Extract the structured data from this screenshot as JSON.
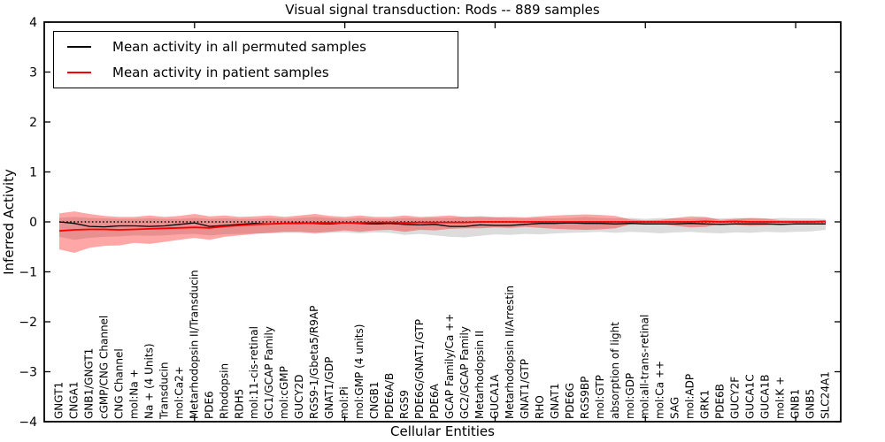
{
  "chart_data": {
    "type": "line",
    "title": "Visual signal transduction: Rods -- 889 samples",
    "xlabel": "Cellular Entities",
    "ylabel": "Inferred Activity",
    "xlim": [
      0,
      53
    ],
    "ylim": [
      -4,
      4
    ],
    "grid": false,
    "legend_position": "upper-left",
    "x_major_ticks": [
      10,
      20,
      30,
      40,
      50
    ],
    "y_ticks": [
      {
        "value": 4,
        "label": "4"
      },
      {
        "value": 3,
        "label": "3"
      },
      {
        "value": 2,
        "label": "2"
      },
      {
        "value": 1,
        "label": "1"
      },
      {
        "value": 0,
        "label": "0"
      },
      {
        "value": -1,
        "label": "−1"
      },
      {
        "value": -2,
        "label": "−2"
      },
      {
        "value": -3,
        "label": "−3"
      },
      {
        "value": -4,
        "label": "−4"
      }
    ],
    "categories": [
      "GNGT1",
      "CNGA1",
      "GNB1/GNGT1",
      "cGMP/CNG Channel",
      "CNG Channel",
      "mol:Na +",
      "Na + (4 Units)",
      "Transducin",
      "mol:Ca2+",
      "Metarhodopsin II/Transducin",
      "PDE6",
      "Rhodopsin",
      "RDH5",
      "mol:11-cis-retinal",
      "GC1/GCAP Family",
      "mol:cGMP",
      "GUCY2D",
      "RGS9-1/Gbeta5/R9AP",
      "GNAT1/GDP",
      "mol:Pi",
      "mol:GMP (4 units)",
      "CNGB1",
      "PDE6A/B",
      "RGS9",
      "PDE6G/GNAT1/GTP",
      "PDE6A",
      "GCAP Family/Ca ++",
      "GC2/GCAP Family",
      "Metarhodopsin II",
      "GUCA1A",
      "Metarhodopsin II/Arrestin",
      "GNAT1/GTP",
      "RHO",
      "GNAT1",
      "PDE6G",
      "RGS9BP",
      "mol:GTP",
      "absorption of light",
      "mol:GDP",
      "mol:all-trans-retinal",
      "mol:Ca ++",
      "SAG",
      "mol:ADP",
      "GRK1",
      "PDE6B",
      "GUCY2F",
      "GUCA1C",
      "GUCA1B",
      "mol:K +",
      "GNB1",
      "GNB5",
      "SLC24A1"
    ],
    "zero_line": {
      "y": 0,
      "style": "dotted",
      "color": "#000000"
    },
    "series": [
      {
        "id": "mean-permuted",
        "name": "Mean activity in all permuted samples",
        "color": "#000000",
        "width": 1.3,
        "values": [
          0.0,
          -0.03,
          -0.09,
          -0.1,
          -0.08,
          -0.08,
          -0.09,
          -0.08,
          -0.05,
          -0.02,
          -0.09,
          -0.07,
          -0.05,
          -0.03,
          -0.04,
          -0.03,
          -0.02,
          -0.03,
          -0.04,
          -0.02,
          -0.03,
          -0.04,
          -0.03,
          -0.05,
          -0.06,
          -0.05,
          -0.09,
          -0.09,
          -0.06,
          -0.07,
          -0.07,
          -0.05,
          -0.03,
          -0.03,
          -0.02,
          -0.03,
          -0.03,
          -0.04,
          -0.03,
          -0.04,
          -0.04,
          -0.04,
          -0.03,
          -0.04,
          -0.05,
          -0.04,
          -0.04,
          -0.04,
          -0.05,
          -0.04,
          -0.04,
          -0.04
        ]
      },
      {
        "id": "mean-patient",
        "name": "Mean activity in patient samples",
        "color": "#ff0000",
        "width": 1.8,
        "values": [
          -0.18,
          -0.16,
          -0.15,
          -0.15,
          -0.16,
          -0.15,
          -0.14,
          -0.13,
          -0.12,
          -0.11,
          -0.12,
          -0.09,
          -0.07,
          -0.05,
          -0.04,
          -0.03,
          -0.03,
          -0.02,
          -0.02,
          -0.02,
          -0.02,
          -0.01,
          -0.01,
          -0.02,
          -0.01,
          -0.01,
          -0.01,
          -0.01,
          0.0,
          0.0,
          0.0,
          0.0,
          0.0,
          0.0,
          0.0,
          0.0,
          0.0,
          0.0,
          0.0,
          0.0,
          0.0,
          0.0,
          0.0,
          0.01,
          0.0,
          0.01,
          0.0,
          0.0,
          0.0,
          0.0,
          0.0,
          0.01
        ]
      }
    ],
    "bands": [
      {
        "id": "gray-band",
        "name": "permuted samples activity range",
        "color": "#808080",
        "opacity": 0.28,
        "upper": [
          0.08,
          0.1,
          0.08,
          0.07,
          0.06,
          0.06,
          0.07,
          0.06,
          0.06,
          0.08,
          0.06,
          0.07,
          0.06,
          0.06,
          0.08,
          0.06,
          0.08,
          0.1,
          0.08,
          0.06,
          0.08,
          0.06,
          0.06,
          0.08,
          0.07,
          0.08,
          0.08,
          0.1,
          0.12,
          0.1,
          0.08,
          0.07,
          0.08,
          0.07,
          0.08,
          0.1,
          0.08,
          0.07,
          0.08,
          0.06,
          0.08,
          0.07,
          0.06,
          0.08,
          0.07,
          0.08,
          0.07,
          0.06,
          0.08,
          0.07,
          0.07,
          0.06
        ],
        "lower": [
          -0.3,
          -0.36,
          -0.32,
          -0.3,
          -0.29,
          -0.27,
          -0.28,
          -0.27,
          -0.25,
          -0.24,
          -0.27,
          -0.25,
          -0.24,
          -0.23,
          -0.23,
          -0.22,
          -0.22,
          -0.24,
          -0.22,
          -0.21,
          -0.23,
          -0.21,
          -0.22,
          -0.26,
          -0.24,
          -0.27,
          -0.3,
          -0.31,
          -0.28,
          -0.25,
          -0.26,
          -0.24,
          -0.25,
          -0.23,
          -0.22,
          -0.21,
          -0.2,
          -0.22,
          -0.2,
          -0.21,
          -0.23,
          -0.21,
          -0.2,
          -0.22,
          -0.23,
          -0.21,
          -0.22,
          -0.2,
          -0.21,
          -0.2,
          -0.19,
          -0.16
        ]
      },
      {
        "id": "red-band",
        "name": "patient samples activity range",
        "color": "#ff0000",
        "opacity": 0.35,
        "upper": [
          0.17,
          0.21,
          0.16,
          0.12,
          0.1,
          0.1,
          0.13,
          0.1,
          0.12,
          0.16,
          0.11,
          0.13,
          0.1,
          0.11,
          0.13,
          0.1,
          0.13,
          0.16,
          0.12,
          0.1,
          0.13,
          0.1,
          0.1,
          0.13,
          0.1,
          0.11,
          0.13,
          0.1,
          0.1,
          0.09,
          0.1,
          0.09,
          0.11,
          0.13,
          0.14,
          0.15,
          0.14,
          0.12,
          0.05,
          0.03,
          0.04,
          0.08,
          0.11,
          0.1,
          0.04,
          0.06,
          0.08,
          0.07,
          0.03,
          0.03,
          0.03,
          0.03
        ],
        "lower": [
          -0.55,
          -0.62,
          -0.52,
          -0.48,
          -0.47,
          -0.42,
          -0.44,
          -0.4,
          -0.36,
          -0.32,
          -0.36,
          -0.3,
          -0.27,
          -0.24,
          -0.22,
          -0.2,
          -0.2,
          -0.22,
          -0.2,
          -0.17,
          -0.2,
          -0.17,
          -0.16,
          -0.2,
          -0.16,
          -0.17,
          -0.14,
          -0.13,
          -0.13,
          -0.11,
          -0.12,
          -0.1,
          -0.12,
          -0.14,
          -0.15,
          -0.16,
          -0.15,
          -0.13,
          -0.05,
          -0.03,
          -0.04,
          -0.08,
          -0.11,
          -0.1,
          -0.04,
          -0.06,
          -0.08,
          -0.07,
          -0.03,
          -0.03,
          -0.03,
          -0.03
        ]
      }
    ]
  }
}
